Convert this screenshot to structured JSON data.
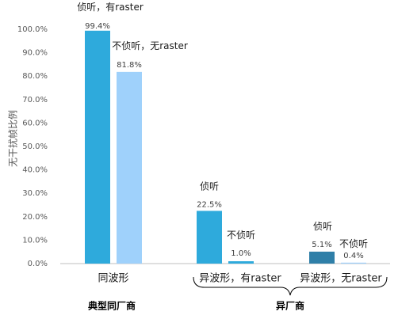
{
  "chart_data": {
    "type": "bar",
    "ylabel": "无干扰帧比例",
    "ylim": [
      0,
      100
    ],
    "yticks": [
      "0.0%",
      "10.0%",
      "20.0%",
      "30.0%",
      "40.0%",
      "50.0%",
      "60.0%",
      "70.0%",
      "80.0%",
      "90.0%",
      "100.0%"
    ],
    "grid": false,
    "legend": "none",
    "categories": [
      "同波形",
      "异波形，有raster",
      "异波形，无raster"
    ],
    "groups": [
      {
        "label": "典型同厂商",
        "categories": [
          0
        ]
      },
      {
        "label": "异厂商",
        "categories": [
          1,
          2
        ]
      }
    ],
    "bars": [
      {
        "category": 0,
        "value": 99.4,
        "label": "99.4%",
        "annotation": "侦听，有raster",
        "color": "#2eaadc"
      },
      {
        "category": 0,
        "value": 81.8,
        "label": "81.8%",
        "annotation": "不侦听，无raster",
        "color": "#9fd1fb"
      },
      {
        "category": 1,
        "value": 22.5,
        "label": "22.5%",
        "annotation": "侦听",
        "color": "#2eaadc"
      },
      {
        "category": 1,
        "value": 1.0,
        "label": "1.0%",
        "annotation": "不侦听",
        "color": "#2eaadc"
      },
      {
        "category": 2,
        "value": 5.1,
        "label": "5.1%",
        "annotation": "侦听",
        "color": "#2f7fa8"
      },
      {
        "category": 2,
        "value": 0.4,
        "label": "0.4%",
        "annotation": "不侦听",
        "color": "#9fd1fb"
      }
    ]
  }
}
